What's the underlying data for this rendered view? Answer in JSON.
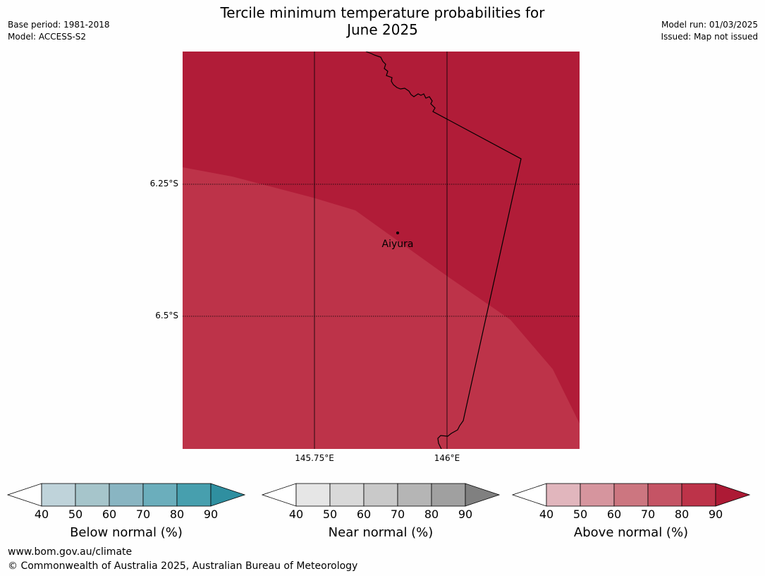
{
  "title": {
    "line1": "Tercile minimum temperature probabilities for",
    "line2": "June 2025"
  },
  "meta_left": {
    "base_period": "Base period: 1981-2018",
    "model": "Model: ACCESS-S2"
  },
  "meta_right": {
    "model_run": "Model run: 01/03/2025",
    "issued": "Issued: Map not issued"
  },
  "map": {
    "lat_labels": [
      "6.25°S",
      "6.5°S"
    ],
    "lon_labels": [
      "145.75°E",
      "146°E"
    ],
    "place": "Aiyura",
    "zone_colors": {
      "above_80_90": "#b11c38",
      "above_70_80": "#bd3349"
    },
    "border_color": "#000000"
  },
  "colorbars": [
    {
      "label": "Below normal (%)",
      "ticks": [
        "40",
        "50",
        "60",
        "70",
        "80",
        "90"
      ],
      "colors": [
        "#bfd3da",
        "#a6c5cb",
        "#89b5c2",
        "#6baebc",
        "#479fae",
        "#2f8fa0"
      ]
    },
    {
      "label": "Near normal (%)",
      "ticks": [
        "40",
        "50",
        "60",
        "70",
        "80",
        "90"
      ],
      "colors": [
        "#e6e6e6",
        "#d9d9d9",
        "#c9c9c9",
        "#b5b5b5",
        "#a0a0a0",
        "#808080"
      ]
    },
    {
      "label": "Above normal (%)",
      "ticks": [
        "40",
        "50",
        "60",
        "70",
        "80",
        "90"
      ],
      "colors": [
        "#e1b6bd",
        "#d6959e",
        "#cc7680",
        "#c55465",
        "#bd3349",
        "#ad1a35"
      ]
    }
  ],
  "footer": {
    "url": "www.bom.gov.au/climate",
    "copyright": "© Commonwealth of Australia 2025, Australian Bureau of Meteorology"
  }
}
